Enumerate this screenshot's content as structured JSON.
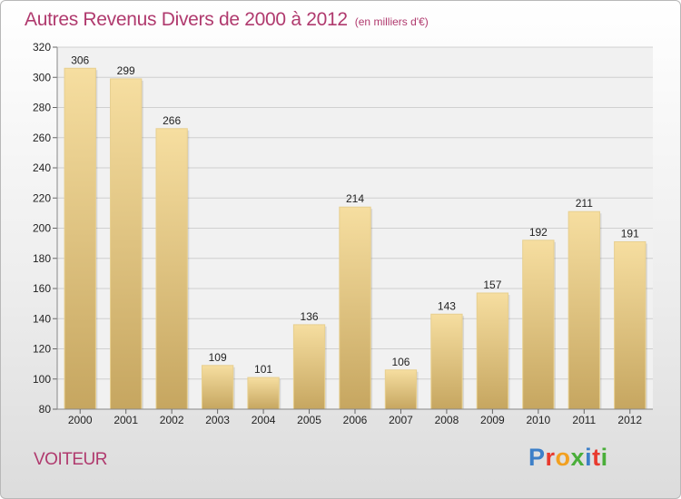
{
  "header": {
    "title": "Autres Revenus Divers de 2000 à 2012",
    "subtitle": "(en milliers d'€)"
  },
  "footer": {
    "commune": "VOITEUR",
    "logo_text": "Proxiti"
  },
  "colors": {
    "title": "#b03a6e",
    "bar_top": "#f6dea0",
    "bar_bottom": "#c6a660",
    "logo_letters": [
      "#3d7fc8",
      "#e83a2e",
      "#f2a020",
      "#4aae3a",
      "#3d7fc8",
      "#e83a2e",
      "#4aae3a"
    ]
  },
  "chart_data": {
    "type": "bar",
    "title": "Autres Revenus Divers de 2000 à 2012",
    "subtitle": "(en milliers d'€)",
    "xlabel": "",
    "ylabel": "",
    "categories": [
      "2000",
      "2001",
      "2002",
      "2003",
      "2004",
      "2005",
      "2006",
      "2007",
      "2008",
      "2009",
      "2010",
      "2011",
      "2012"
    ],
    "values": [
      306,
      299,
      266,
      109,
      101,
      136,
      214,
      106,
      143,
      157,
      192,
      211,
      191
    ],
    "ylim": [
      80,
      320
    ],
    "yticks": [
      80,
      100,
      120,
      140,
      160,
      180,
      200,
      220,
      240,
      260,
      280,
      300,
      320
    ],
    "grid": true,
    "legend": "none"
  }
}
